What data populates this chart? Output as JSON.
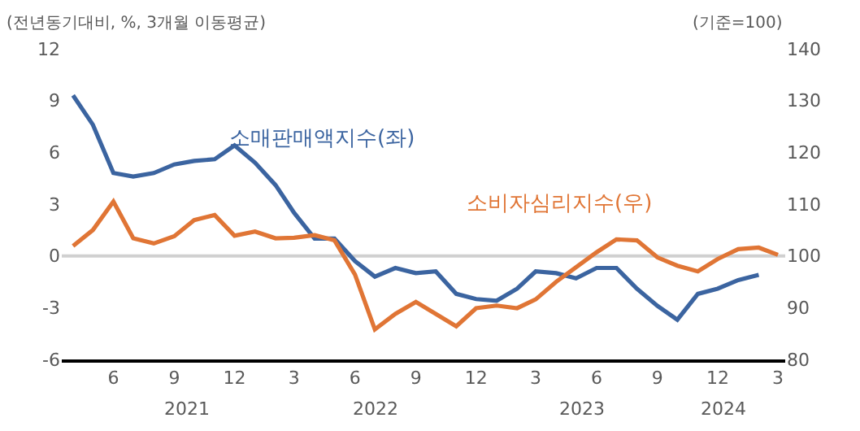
{
  "chart_data": {
    "type": "line",
    "x": [
      "2021-04",
      "2021-05",
      "2021-06",
      "2021-07",
      "2021-08",
      "2021-09",
      "2021-10",
      "2021-11",
      "2021-12",
      "2022-01",
      "2022-02",
      "2022-03",
      "2022-04",
      "2022-05",
      "2022-06",
      "2022-07",
      "2022-08",
      "2022-09",
      "2022-10",
      "2022-11",
      "2022-12",
      "2023-01",
      "2023-02",
      "2023-03",
      "2023-04",
      "2023-05",
      "2023-06",
      "2023-07",
      "2023-08",
      "2023-09",
      "2023-10",
      "2023-11",
      "2023-12",
      "2024-01",
      "2024-02",
      "2024-03"
    ],
    "series": [
      {
        "name": "소매판매액지수(좌)",
        "color": "#3b64a0",
        "values": [
          9.3,
          7.6,
          4.8,
          4.6,
          4.8,
          5.3,
          5.5,
          5.6,
          6.4,
          5.4,
          4.1,
          2.5,
          1.0,
          1.0,
          -0.3,
          -1.2,
          -0.7,
          -1.0,
          -0.9,
          -2.2,
          -2.5,
          -2.6,
          -1.9,
          -0.9,
          -1.0,
          -1.3,
          -0.7,
          -0.7,
          -1.9,
          -2.9,
          -3.7,
          -2.2,
          -1.9,
          -1.4,
          -1.1,
          null
        ]
      },
      {
        "name": "소비자심리지수(우)",
        "color": "#e07535",
        "axis": "y2",
        "values": [
          101.9,
          105.0,
          110.5,
          103.4,
          102.4,
          103.8,
          106.9,
          107.9,
          103.9,
          104.7,
          103.4,
          103.5,
          104.0,
          103.0,
          96.4,
          85.8,
          88.8,
          91.1,
          88.8,
          86.4,
          89.9,
          90.4,
          89.9,
          91.6,
          95.0,
          97.8,
          100.7,
          103.2,
          103.0,
          99.7,
          98.1,
          97.0,
          99.4,
          101.3,
          101.6,
          100.2
        ]
      }
    ],
    "xlim": [
      "2021-03-15",
      "2024-03-12"
    ],
    "xticks": [
      {
        "value": "2021-06",
        "label": "6"
      },
      {
        "value": "2021-09",
        "label": "9"
      },
      {
        "value": "2021-12",
        "label": "12"
      },
      {
        "value": "2022-03",
        "label": "3"
      },
      {
        "value": "2022-06",
        "label": "6"
      },
      {
        "value": "2022-09",
        "label": "9"
      },
      {
        "value": "2022-12",
        "label": "12"
      },
      {
        "value": "2023-03",
        "label": "3"
      },
      {
        "value": "2023-06",
        "label": "6"
      },
      {
        "value": "2023-09",
        "label": "9"
      },
      {
        "value": "2023-12",
        "label": "12"
      },
      {
        "value": "2024-03",
        "label": "3"
      }
    ],
    "ylim": [
      -6,
      12
    ],
    "yticks": [
      -6,
      -3,
      0,
      3,
      6,
      9,
      12
    ],
    "y2lim": [
      80,
      140
    ],
    "y2ticks": [
      80,
      90,
      100,
      110,
      120,
      130,
      140
    ],
    "ref_lines": [
      {
        "axis": "y",
        "value": 0,
        "color": "#d0d0d0"
      }
    ],
    "annotations": [
      "(전년동기대비, %, 3개월 이동평균)",
      "(기준=100)",
      "2021",
      "2022",
      "2023",
      "2024"
    ],
    "grid": false,
    "legend": false
  }
}
